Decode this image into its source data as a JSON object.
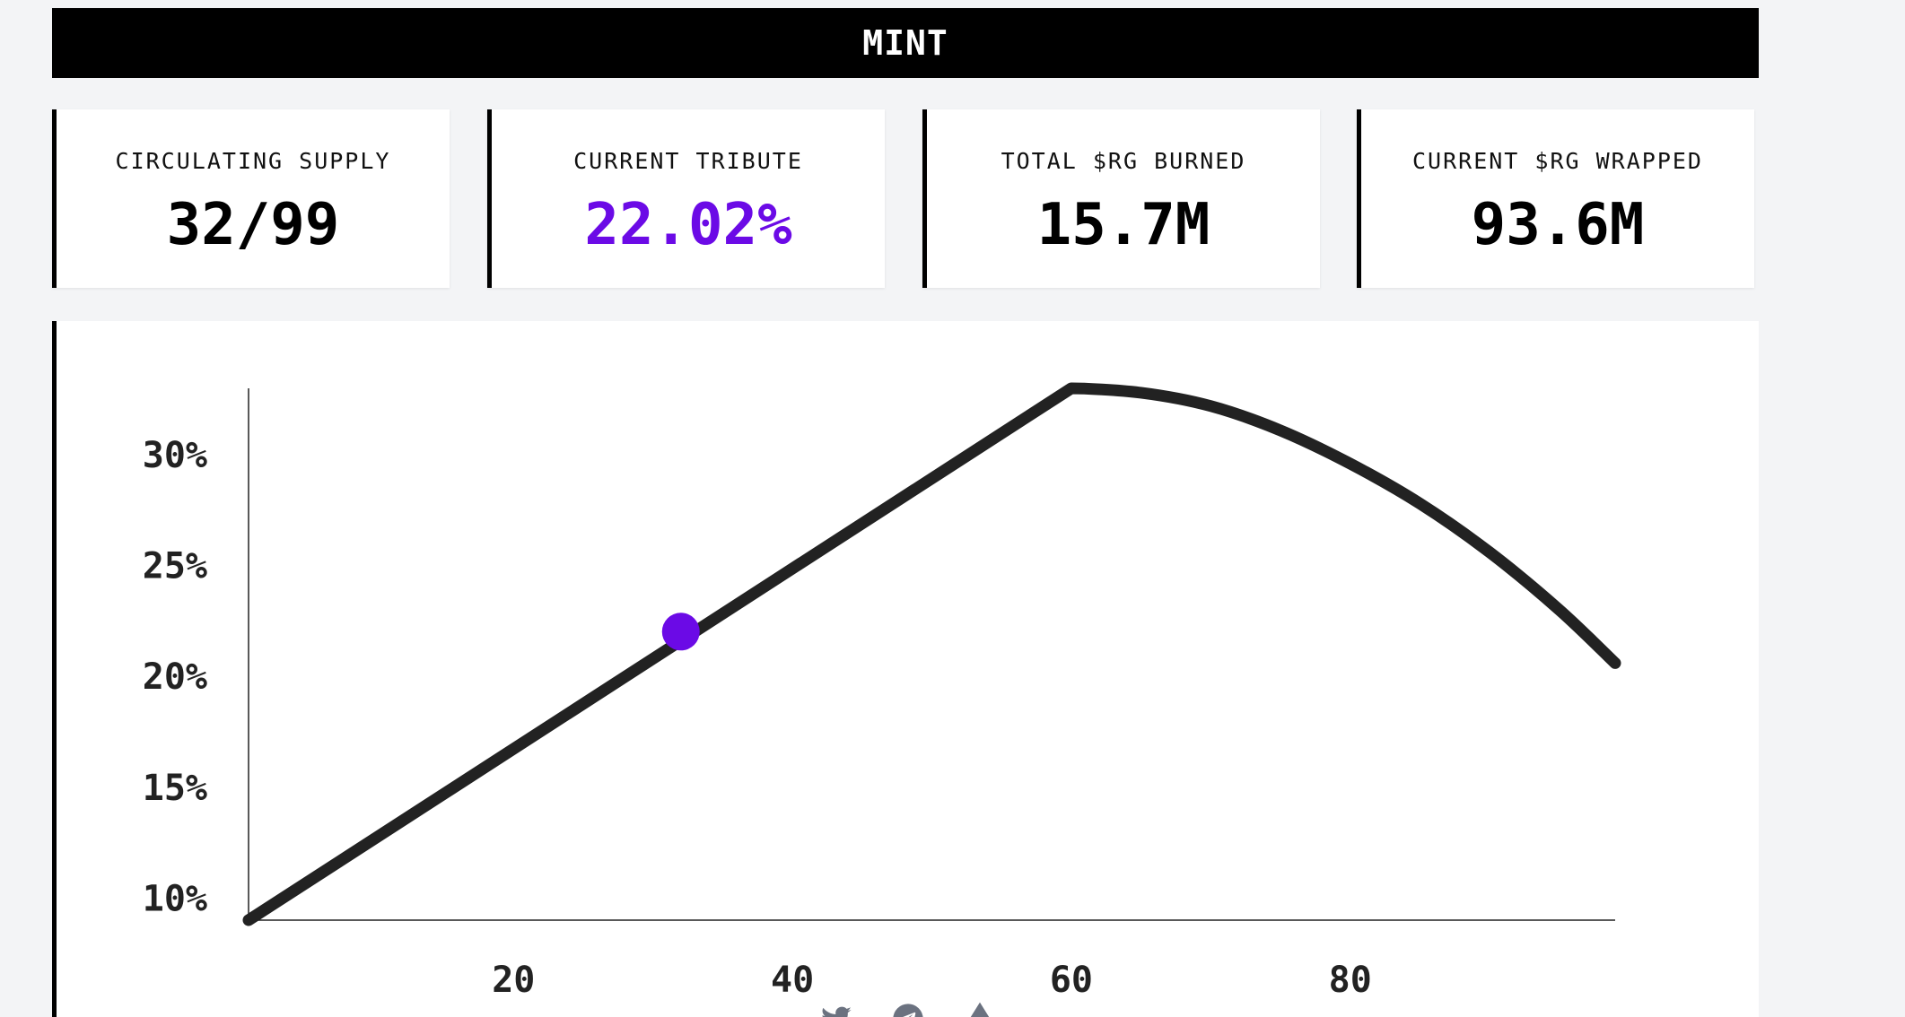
{
  "header": {
    "mint_label": "MINT"
  },
  "stats": [
    {
      "label": "CIRCULATING SUPPLY",
      "value": "32/99"
    },
    {
      "label": "CURRENT TRIBUTE",
      "value": "22.02%"
    },
    {
      "label": "TOTAL $RG BURNED",
      "value": "15.7M"
    },
    {
      "label": "CURRENT $RG WRAPPED",
      "value": "93.6M"
    }
  ],
  "colors": {
    "accent": "#6b0ae6",
    "line": "#222222",
    "footer_icon": "#6b7280"
  },
  "chart_data": {
    "type": "line",
    "title": "",
    "xlabel": "",
    "ylabel": "",
    "xlim": [
      1,
      99
    ],
    "ylim": [
      9,
      33
    ],
    "x_ticks": [
      20,
      40,
      60,
      80
    ],
    "x_tick_labels": [
      "20",
      "40",
      "60",
      "80"
    ],
    "y_ticks": [
      10,
      15,
      20,
      25,
      30
    ],
    "y_tick_labels": [
      "10%",
      "15%",
      "20%",
      "25%",
      "30%"
    ],
    "grid": false,
    "series": [
      {
        "x": [
          1,
          60,
          65,
          70,
          75,
          80,
          85,
          90,
          95,
          99
        ],
        "y": [
          9,
          33,
          32.8,
          32.2,
          31.1,
          29.6,
          27.8,
          25.6,
          23.0,
          20.6
        ]
      }
    ],
    "highlight_point": {
      "x": 32,
      "y": 22.02
    }
  },
  "footer": {
    "icons": [
      "twitter-icon",
      "telegram-icon",
      "eth-icon"
    ]
  }
}
